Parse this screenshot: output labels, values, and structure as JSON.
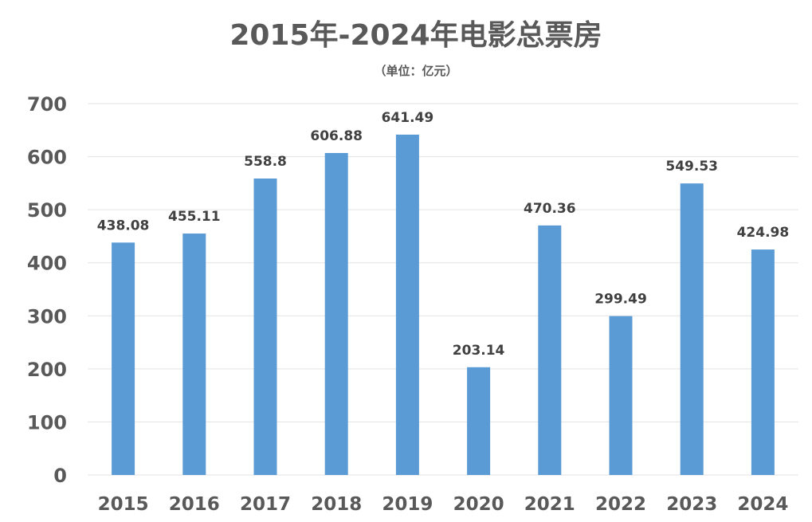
{
  "chart_data": {
    "type": "bar",
    "title": "2015年-2024年电影总票房",
    "subtitle": "（单位：亿元）",
    "categories": [
      "2015",
      "2016",
      "2017",
      "2018",
      "2019",
      "2020",
      "2021",
      "2022",
      "2023",
      "2024"
    ],
    "series": [
      {
        "values": [
          438.08,
          455.11,
          558.8,
          606.88,
          641.49,
          203.14,
          470.36,
          299.49,
          549.53,
          424.98
        ],
        "labels": [
          "438.08",
          "455.11",
          "558.8",
          "606.88",
          "641.49",
          "203.14",
          "470.36",
          "299.49",
          "549.53",
          "424.98"
        ],
        "color": "#5b9bd5"
      }
    ],
    "ylim": [
      0,
      700
    ],
    "yticks": [
      "0",
      "100",
      "200",
      "300",
      "400",
      "500",
      "600",
      "700"
    ],
    "grid": true,
    "legend": "none"
  }
}
